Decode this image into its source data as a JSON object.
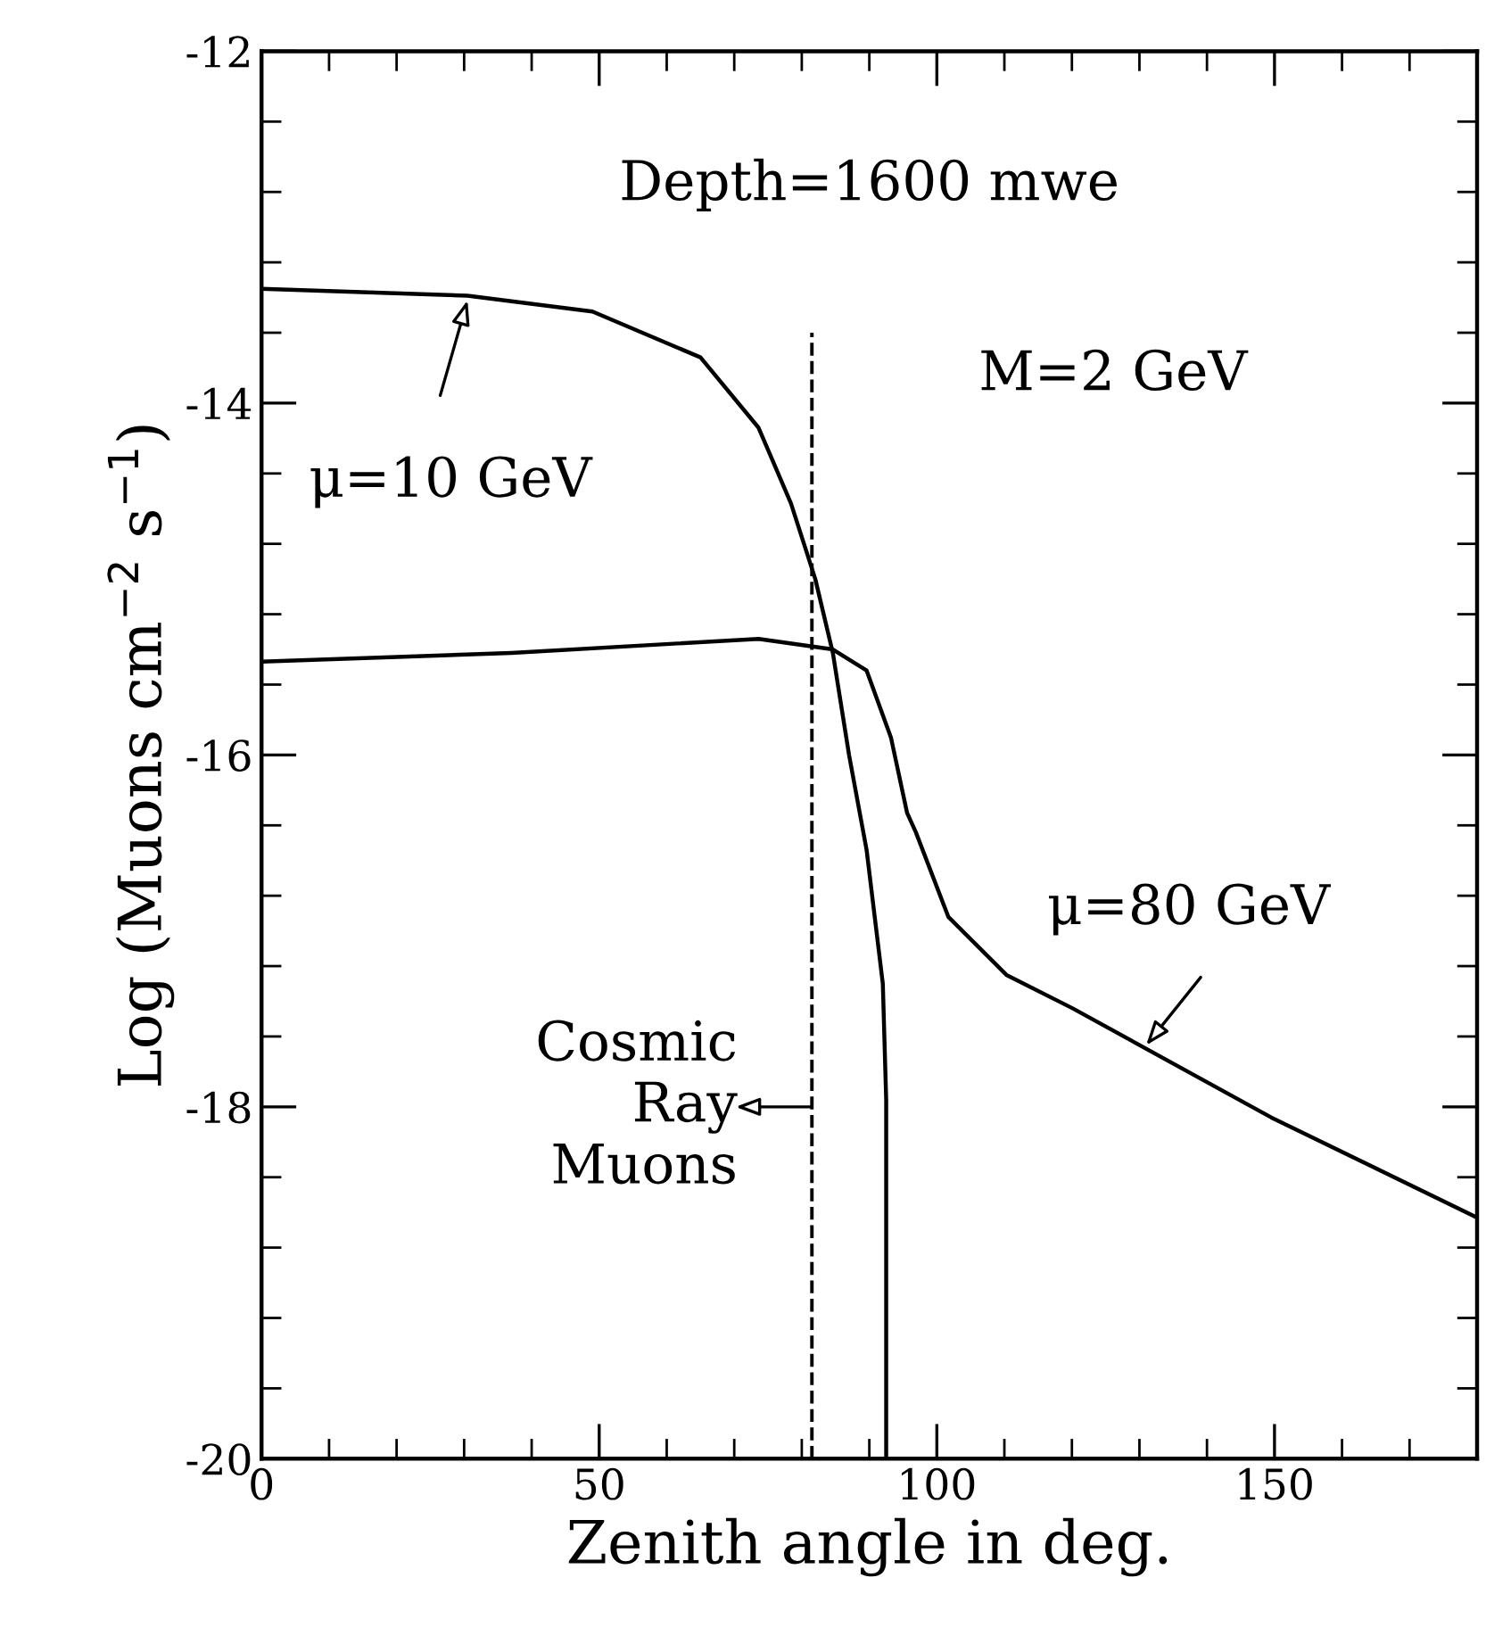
{
  "chart_data": {
    "type": "line",
    "xlabel": "Zenith angle in deg.",
    "ylabel": "Log (Muons cm$^{−2}$ s$^{−1}$)",
    "series": [
      {
        "color": "#000000",
        "x": [
          0,
          30.5,
          49,
          65,
          73.6,
          78.4,
          82,
          84.6,
          87,
          89.6,
          92,
          92.5,
          92.5
        ],
        "values": [
          -13.35,
          -13.39,
          -13.48,
          -13.74,
          -14.14,
          -14.57,
          -15.0,
          -15.42,
          -16.0,
          -16.54,
          -17.3,
          -17.96,
          -20
        ]
      },
      {
        "color": "#000000",
        "x": [
          0,
          37,
          73.6,
          84.6,
          89.6,
          93.2,
          95.6,
          96.9,
          101.7,
          110.3,
          120.1,
          149.5,
          180
        ],
        "values": [
          -15.47,
          -15.42,
          -15.34,
          -15.4,
          -15.52,
          -15.9,
          -16.33,
          -16.44,
          -16.92,
          -17.25,
          -17.44,
          -18.06,
          -18.63
        ]
      }
    ],
    "ref_lines": [
      {
        "axis": "x",
        "value": 81.5,
        "color": "#000000",
        "line_style": "dashed"
      }
    ],
    "annotations": [
      "Depth=1600 mwe",
      "M=2 GeV",
      {
        "text": "μ=10 GeV",
        "x": 30.5,
        "y": -13.39
      },
      {
        "text": "μ=80 GeV",
        "x": 131,
        "y": -17.65
      },
      {
        "text": "Cosmic\nRay\nMuons",
        "x": 81.5,
        "y": -18
      }
    ],
    "xlim": [
      0,
      180
    ],
    "ylim": [
      -20,
      -12
    ],
    "xticks": [
      0,
      50,
      100,
      150
    ],
    "yticks": [
      -20,
      -18,
      -16,
      -14,
      -12
    ],
    "grid": false,
    "legend": false,
    "line_style": "solid",
    "marker": "none"
  }
}
